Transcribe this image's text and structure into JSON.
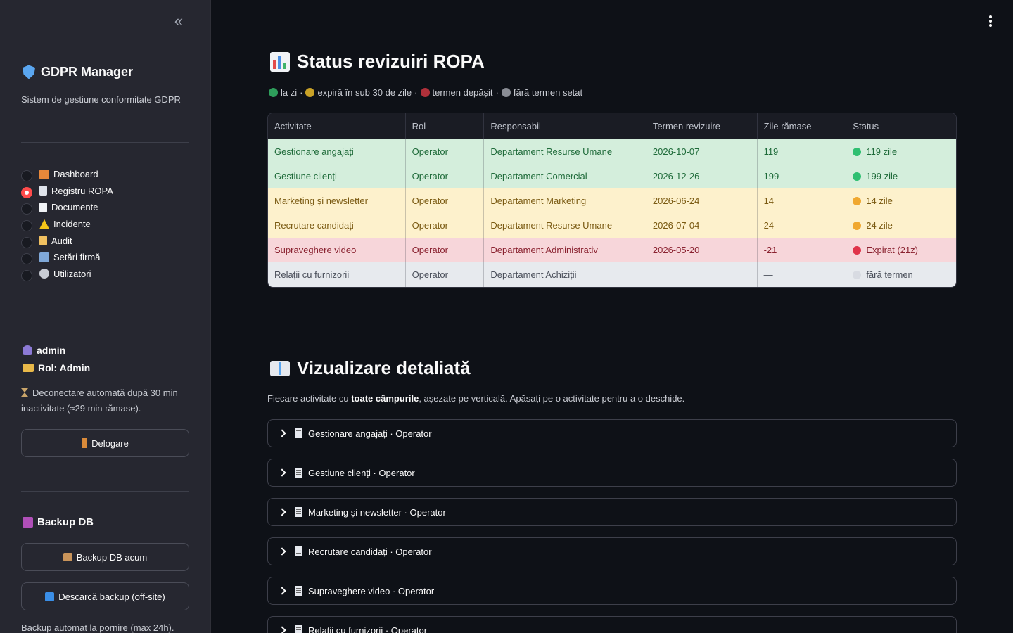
{
  "sidebar": {
    "collapse_glyph": "«",
    "brand_title": "GDPR Manager",
    "brand_subtitle": "Sistem de gestiune conformitate GDPR",
    "nav": [
      {
        "label": "Dashboard",
        "icon": "house-icon",
        "selected": false
      },
      {
        "label": "Registru ROPA",
        "icon": "clipboard-icon",
        "selected": true
      },
      {
        "label": "Documente",
        "icon": "document-icon",
        "selected": false
      },
      {
        "label": "Incidente",
        "icon": "warning-icon",
        "selected": false
      },
      {
        "label": "Audit",
        "icon": "receipt-icon",
        "selected": false
      },
      {
        "label": "Setări firmă",
        "icon": "office-building-icon",
        "selected": false
      },
      {
        "label": "Utilizatori",
        "icon": "gear-icon",
        "selected": false
      }
    ],
    "user_name": "admin",
    "user_role": "Rol: Admin",
    "auto_logout_note": "Deconectare automată după 30 min inactivitate (≈29 min rămase).",
    "logout_label": "Delogare",
    "backup_title": "Backup DB",
    "backup_now_label": "Backup DB acum",
    "download_backup_label": "Descarcă backup (off-site)",
    "backup_note": "Backup automat la pornire (max 24h)."
  },
  "main": {
    "title": "Status revizuiri ROPA",
    "legend": [
      {
        "label": "la zi",
        "color": "#2e9e5b"
      },
      {
        "label": "expiră în sub 30 de zile",
        "color": "#c9a227"
      },
      {
        "label": "termen depășit",
        "color": "#b0303a"
      },
      {
        "label": "fără termen setat",
        "color": "#8a8d95"
      }
    ],
    "legend_sep": "·",
    "table": {
      "headers": [
        "Activitate",
        "Rol",
        "Responsabil",
        "Termen revizuire",
        "Zile rămase",
        "Status"
      ],
      "rows": [
        {
          "activity": "Gestionare angajați",
          "role": "Operator",
          "owner": "Departament Resurse Umane",
          "due": "2026-10-07",
          "days": "119",
          "status": "119 zile",
          "bg": "#d4eedc",
          "fg": "#1f6b3a",
          "dot": "#2fbf71"
        },
        {
          "activity": "Gestiune clienți",
          "role": "Operator",
          "owner": "Departament Comercial",
          "due": "2026-12-26",
          "days": "199",
          "status": "199 zile",
          "bg": "#d4eedc",
          "fg": "#1f6b3a",
          "dot": "#2fbf71"
        },
        {
          "activity": "Marketing și newsletter",
          "role": "Operator",
          "owner": "Departament Marketing",
          "due": "2026-06-24",
          "days": "14",
          "status": "14 zile",
          "bg": "#fdf1cc",
          "fg": "#7a5a12",
          "dot": "#f0a830"
        },
        {
          "activity": "Recrutare candidați",
          "role": "Operator",
          "owner": "Departament Resurse Umane",
          "due": "2026-07-04",
          "days": "24",
          "status": "24 zile",
          "bg": "#fdf1cc",
          "fg": "#7a5a12",
          "dot": "#f0a830"
        },
        {
          "activity": "Supraveghere video",
          "role": "Operator",
          "owner": "Departament Administrativ",
          "due": "2026-05-20",
          "days": "-21",
          "status": "Expirat (21z)",
          "bg": "#f7d6da",
          "fg": "#8a2230",
          "dot": "#e0344a"
        },
        {
          "activity": "Relații cu furnizorii",
          "role": "Operator",
          "owner": "Departament Achiziții",
          "due": "",
          "days": "—",
          "status": "fără termen",
          "bg": "#e7eaee",
          "fg": "#4a4f5a",
          "dot": "#d8dbe2"
        }
      ]
    },
    "details_title": "Vizualizare detaliată",
    "details_intro_pre": "Fiecare activitate cu ",
    "details_intro_bold": "toate câmpurile",
    "details_intro_post": ", așezate pe verticală. Apăsați pe o activitate pentru a o deschide.",
    "expanders": [
      "Gestionare angajați · Operator",
      "Gestiune clienți · Operator",
      "Marketing și newsletter · Operator",
      "Recrutare candidați · Operator",
      "Supraveghere video · Operator",
      "Relații cu furnizorii · Operator"
    ]
  }
}
